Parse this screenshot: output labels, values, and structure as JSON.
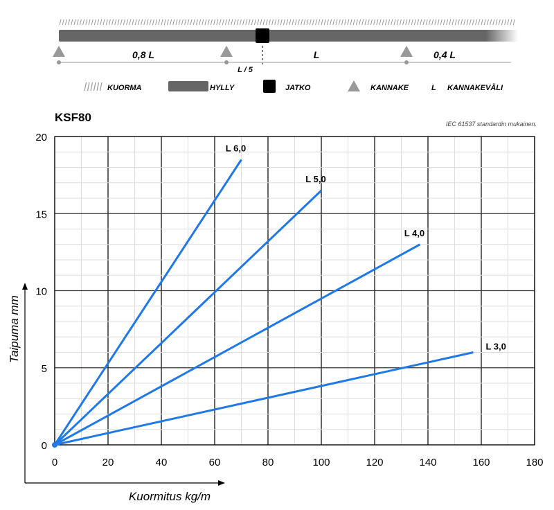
{
  "diagram": {
    "spans": [
      "0,8 L",
      "L",
      "0,4 L"
    ],
    "offset_label": "L / 5",
    "legend": [
      {
        "icon": "hatch-icon",
        "label": "KUORMA"
      },
      {
        "icon": "shelf-bar-icon",
        "label": "HYLLY"
      },
      {
        "icon": "black-square-icon",
        "label": "JATKO"
      },
      {
        "icon": "triangle-icon",
        "label": "KANNAKE"
      },
      {
        "icon": "L",
        "label": "KANNAKEVÄLI"
      }
    ],
    "colors": {
      "shelf": "#666666",
      "joint": "#000000",
      "support": "#999999"
    }
  },
  "chart_data": {
    "type": "line",
    "title": "KSF80",
    "subtitle": "IEC 61537 standardin mukainen.",
    "xlabel": "Kuormitus kg/m",
    "ylabel": "Taipuma mm",
    "xlim": [
      0,
      180
    ],
    "ylim": [
      0,
      20
    ],
    "xticks": [
      0,
      20,
      40,
      60,
      80,
      100,
      120,
      140,
      160,
      180
    ],
    "yticks": [
      0,
      5,
      10,
      15,
      20
    ],
    "grid": true,
    "line_color": "#1f78e8",
    "series": [
      {
        "name": "L 6,0",
        "x": [
          0,
          70
        ],
        "y": [
          0,
          18.5
        ]
      },
      {
        "name": "L 5,0",
        "x": [
          0,
          100
        ],
        "y": [
          0,
          16.5
        ]
      },
      {
        "name": "L 4,0",
        "x": [
          0,
          137
        ],
        "y": [
          0,
          13.0
        ]
      },
      {
        "name": "L 3,0",
        "x": [
          0,
          157
        ],
        "y": [
          0,
          6.0
        ]
      }
    ]
  }
}
